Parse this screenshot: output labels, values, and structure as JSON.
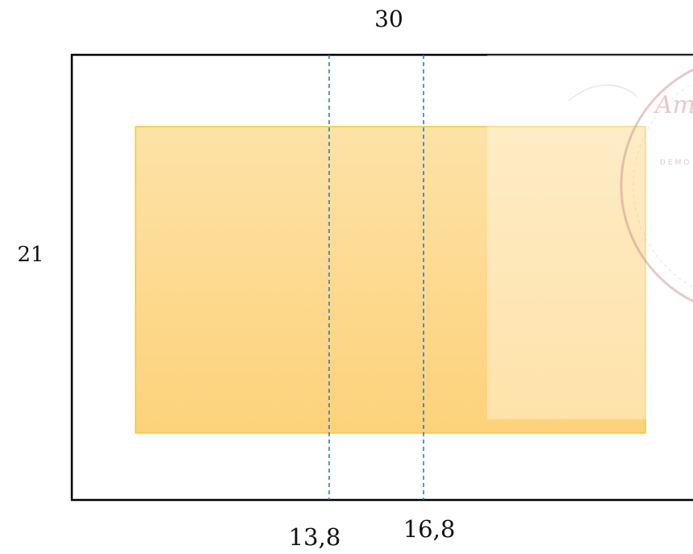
{
  "diagram": {
    "width_label": "30",
    "height_label": "21",
    "fold_line_left_label": "13,8",
    "fold_line_right_label": "16,8",
    "watermark_text": "DEMO",
    "watermark_script": "Am",
    "colors": {
      "page_border": "#000000",
      "inner_fill_top": "#fde2a7",
      "inner_fill_bottom": "#fdd27a",
      "inner_border": "#f4c542",
      "fold_line": "#2e6fbf",
      "watermark": "#c98a88"
    }
  }
}
